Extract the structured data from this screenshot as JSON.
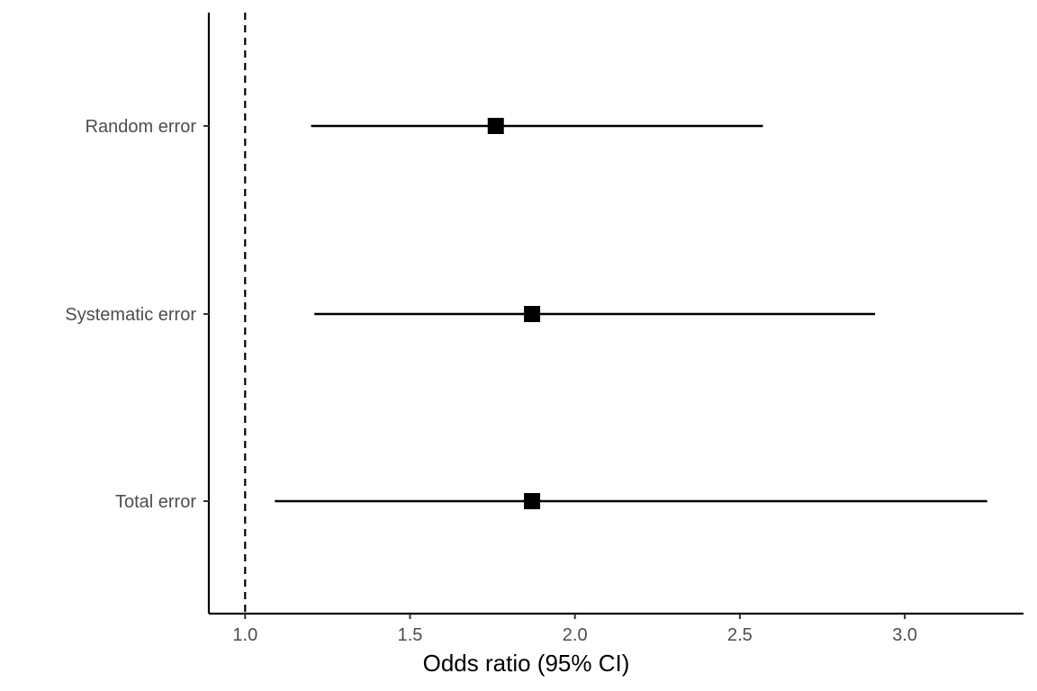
{
  "chart_data": {
    "type": "forest",
    "title": "",
    "xlabel": "Odds ratio (95% CI)",
    "ylabel": "",
    "xlim": [
      0.89,
      3.36
    ],
    "xticks": [
      1.0,
      1.5,
      2.0,
      2.5,
      3.0
    ],
    "xtick_labels": [
      "1.0",
      "1.5",
      "2.0",
      "2.5",
      "3.0"
    ],
    "reference_line": {
      "x": 1.0,
      "style": "dashed"
    },
    "grid": false,
    "categories": [
      "Random error",
      "Systematic error",
      "Total error"
    ],
    "series": [
      {
        "estimates": [
          1.76,
          1.87,
          1.87
        ],
        "lower": [
          1.2,
          1.21,
          1.09
        ],
        "upper": [
          2.57,
          2.91,
          3.25
        ]
      }
    ],
    "colors": {
      "marks": "#000000",
      "tick_text": "#4d4d4d"
    }
  }
}
